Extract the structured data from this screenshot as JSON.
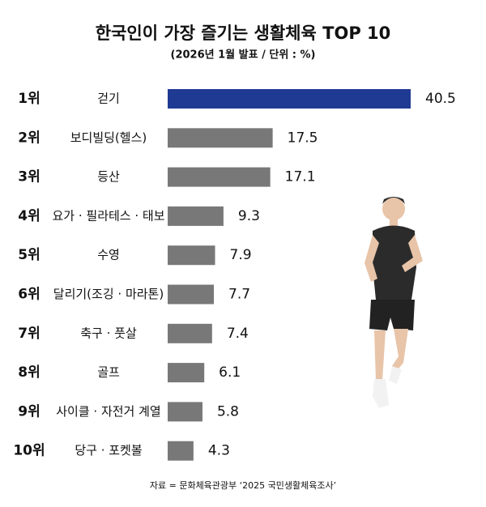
{
  "chart_data": {
    "type": "hbar",
    "title": "한국인이 가장 즐기는 생활체육 TOP 10",
    "subtitle": "(2026년 1월 발표 / 단위 : %)",
    "ranks": [
      "1위",
      "2위",
      "3위",
      "4위",
      "5위",
      "6위",
      "7위",
      "8위",
      "9위",
      "10위"
    ],
    "categories": [
      "걷기",
      "보디빌딩(헬스)",
      "등산",
      "요가 · 필라테스 · 태보",
      "수영",
      "달리기(조깅 · 마라톤)",
      "축구 · 풋살",
      "골프",
      "사이클 · 자전거 계열",
      "당구 · 포켓볼"
    ],
    "values": [
      40.5,
      17.5,
      17.1,
      9.3,
      7.9,
      7.7,
      7.4,
      6.1,
      5.8,
      4.3
    ],
    "colors": [
      "#1f3a93",
      "#787878",
      "#787878",
      "#787878",
      "#787878",
      "#787878",
      "#787878",
      "#787878",
      "#787878",
      "#787878"
    ],
    "source": "자료 = 문화체육관광부 ‘2025 국민생활체육조사’"
  }
}
